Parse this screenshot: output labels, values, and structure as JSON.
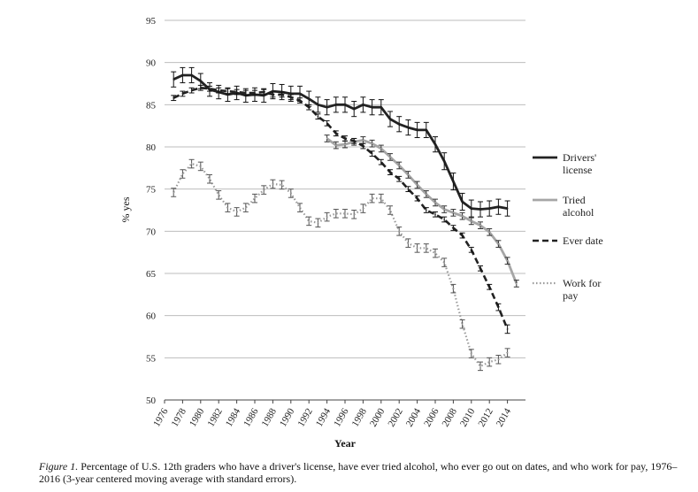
{
  "chart_data": {
    "type": "line",
    "title": "",
    "xlabel": "Year",
    "ylabel": "% yes",
    "xlim": [
      1976,
      2016
    ],
    "ylim": [
      50,
      95
    ],
    "y_ticks": [
      50,
      55,
      60,
      65,
      70,
      75,
      80,
      85,
      90,
      95
    ],
    "x_ticks": [
      1976,
      1978,
      1980,
      1982,
      1984,
      1986,
      1988,
      1990,
      1992,
      1994,
      1996,
      1998,
      2000,
      2002,
      2004,
      2006,
      2008,
      2010,
      2012,
      2014
    ],
    "grid": "horizontal",
    "legend_position": "right",
    "series": [
      {
        "name": "Drivers' license",
        "style": "solid",
        "color": "#222222",
        "x": [
          1977,
          1978,
          1979,
          1980,
          1981,
          1982,
          1983,
          1984,
          1985,
          1986,
          1987,
          1988,
          1989,
          1990,
          1991,
          1992,
          1993,
          1994,
          1995,
          1996,
          1997,
          1998,
          1999,
          2000,
          2001,
          2002,
          2003,
          2004,
          2005,
          2006,
          2007,
          2008,
          2009,
          2010,
          2011,
          2012,
          2013,
          2014
        ],
        "y": [
          88,
          88.5,
          88.5,
          87.8,
          86.8,
          86.5,
          86.2,
          86.4,
          86.1,
          86.2,
          86.1,
          86.6,
          86.5,
          86.3,
          86.3,
          85.7,
          85.0,
          84.7,
          85.0,
          85.0,
          84.5,
          85.0,
          84.7,
          84.7,
          83.3,
          82.7,
          82.3,
          82.0,
          82.0,
          80.3,
          78.3,
          75.9,
          73.5,
          72.7,
          72.6,
          72.7,
          72.9,
          72.7
        ],
        "err": [
          0.9,
          0.9,
          0.9,
          0.9,
          0.8,
          0.8,
          0.8,
          0.8,
          0.8,
          0.8,
          0.8,
          0.9,
          0.9,
          0.9,
          0.9,
          0.9,
          0.9,
          0.9,
          0.9,
          0.9,
          0.9,
          0.9,
          0.9,
          0.9,
          0.9,
          0.9,
          0.9,
          0.9,
          0.9,
          0.9,
          1.0,
          1.0,
          1.0,
          1.0,
          0.9,
          0.9,
          0.9,
          0.9
        ]
      },
      {
        "name": "Tried alcohol",
        "style": "solid-light",
        "color": "#a6a6a6",
        "x": [
          1994,
          1995,
          1996,
          1997,
          1998,
          1999,
          2000,
          2001,
          2002,
          2003,
          2004,
          2005,
          2006,
          2007,
          2008,
          2009,
          2010,
          2011,
          2012,
          2013,
          2014,
          2015
        ],
        "y": [
          81.0,
          80.2,
          80.3,
          80.6,
          80.8,
          80.4,
          79.8,
          78.8,
          77.8,
          76.7,
          75.5,
          74.4,
          73.4,
          72.6,
          72.2,
          71.8,
          71.2,
          70.7,
          69.9,
          68.5,
          66.5,
          63.8
        ],
        "err": [
          0.4,
          0.4,
          0.4,
          0.4,
          0.4,
          0.4,
          0.4,
          0.4,
          0.4,
          0.4,
          0.4,
          0.4,
          0.4,
          0.4,
          0.4,
          0.4,
          0.4,
          0.4,
          0.4,
          0.4,
          0.4,
          0.4
        ]
      },
      {
        "name": "Ever date",
        "style": "dashed",
        "color": "#222222",
        "x": [
          1977,
          1978,
          1979,
          1980,
          1981,
          1982,
          1983,
          1984,
          1985,
          1986,
          1987,
          1988,
          1989,
          1990,
          1991,
          1992,
          1993,
          1994,
          1995,
          1996,
          1997,
          1998,
          1999,
          2000,
          2001,
          2002,
          2003,
          2004,
          2005,
          2006,
          2007,
          2008,
          2009,
          2010,
          2011,
          2012,
          2013,
          2014
        ],
        "y": [
          85.8,
          86.3,
          86.7,
          87.0,
          86.9,
          86.7,
          86.6,
          86.5,
          86.4,
          86.4,
          86.5,
          86.2,
          86.2,
          85.9,
          85.5,
          84.7,
          83.6,
          82.8,
          81.6,
          81.0,
          80.7,
          80.1,
          79.2,
          78.2,
          77.0,
          76.2,
          75.0,
          73.9,
          72.5,
          72.0,
          71.4,
          70.4,
          69.5,
          67.8,
          65.6,
          63.4,
          61.0,
          58.4
        ],
        "err": [
          0.3,
          0.3,
          0.3,
          0.3,
          0.3,
          0.3,
          0.3,
          0.3,
          0.3,
          0.3,
          0.3,
          0.3,
          0.3,
          0.3,
          0.3,
          0.3,
          0.3,
          0.3,
          0.3,
          0.3,
          0.3,
          0.3,
          0.3,
          0.3,
          0.3,
          0.3,
          0.3,
          0.3,
          0.3,
          0.3,
          0.3,
          0.3,
          0.3,
          0.3,
          0.3,
          0.3,
          0.4,
          0.5
        ]
      },
      {
        "name": "Work for pay",
        "style": "dotted",
        "color": "#9a9a9a",
        "x": [
          1977,
          1978,
          1979,
          1980,
          1981,
          1982,
          1983,
          1984,
          1985,
          1986,
          1987,
          1988,
          1989,
          1990,
          1991,
          1992,
          1993,
          1994,
          1995,
          1996,
          1997,
          1998,
          1999,
          2000,
          2001,
          2002,
          2003,
          2004,
          2005,
          2006,
          2007,
          2008,
          2009,
          2010,
          2011,
          2012,
          2013,
          2014
        ],
        "y": [
          74.6,
          76.8,
          78.0,
          77.7,
          76.2,
          74.3,
          72.8,
          72.3,
          72.8,
          73.9,
          74.9,
          75.6,
          75.5,
          74.5,
          72.8,
          71.2,
          71.0,
          71.7,
          72.1,
          72.1,
          72.0,
          72.7,
          73.9,
          73.9,
          72.5,
          70.0,
          68.6,
          68.0,
          68.0,
          67.4,
          66.3,
          63.2,
          59.0,
          55.5,
          54.0,
          54.5,
          54.8,
          55.6
        ],
        "err": [
          0.5,
          0.5,
          0.5,
          0.5,
          0.5,
          0.5,
          0.5,
          0.5,
          0.5,
          0.5,
          0.5,
          0.5,
          0.5,
          0.5,
          0.5,
          0.5,
          0.5,
          0.5,
          0.5,
          0.5,
          0.5,
          0.5,
          0.5,
          0.5,
          0.5,
          0.5,
          0.5,
          0.5,
          0.5,
          0.5,
          0.5,
          0.5,
          0.5,
          0.5,
          0.5,
          0.5,
          0.5,
          0.5
        ]
      }
    ],
    "legend": [
      {
        "line1": "Drivers'",
        "line2": "license"
      },
      {
        "line1": "Tried",
        "line2": "alcohol"
      },
      {
        "line1": "Ever date",
        "line2": ""
      },
      {
        "line1": "Work for",
        "line2": "pay"
      }
    ]
  },
  "caption": {
    "label": "Figure 1.",
    "text": " Percentage of U.S. 12th graders who have a driver's license, have ever tried alcohol, who ever go out on dates, and who work for pay, 1976–2016 (3-year centered moving average with standard errors)."
  }
}
